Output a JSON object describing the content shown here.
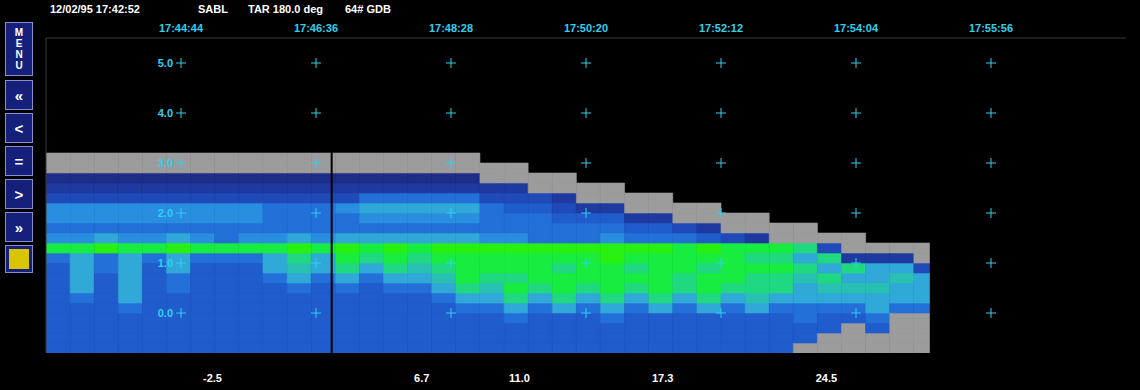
{
  "header": [
    "12/02/95 17:42:52",
    "SABL",
    "TAR 180.0 deg",
    "64# GDB"
  ],
  "menu": {
    "label": "MENU",
    "buttons": [
      "«",
      "<",
      "=",
      ">",
      "»"
    ]
  },
  "chart_data": {
    "type": "heatmap",
    "grid": true,
    "xlim": [
      63772,
      64668
    ],
    "xticks": [
      {
        "value": 63884,
        "label": "17:44:44"
      },
      {
        "value": 63996,
        "label": "17:46:36"
      },
      {
        "value": 64108,
        "label": "17:48:28"
      },
      {
        "value": 64220,
        "label": "17:50:20"
      },
      {
        "value": 64332,
        "label": "17:52:12"
      },
      {
        "value": 64444,
        "label": "17:54:04"
      },
      {
        "value": 64556,
        "label": "17:55:56"
      }
    ],
    "ylim": [
      -0.8,
      5.5
    ],
    "yticks": [
      {
        "value": 0,
        "label": "0.0"
      },
      {
        "value": 1,
        "label": "1.0"
      },
      {
        "value": 2,
        "label": "2.0"
      },
      {
        "value": 3,
        "label": "3.0"
      },
      {
        "value": 4,
        "label": "4.0"
      },
      {
        "value": 5,
        "label": "5.0"
      }
    ],
    "cursor_x": 64009,
    "x": [
      63772,
      63792,
      63812,
      63832,
      63852,
      63872,
      63892,
      63912,
      63932,
      63952,
      63972,
      63992,
      64012,
      64032,
      64052,
      64072,
      64092,
      64112,
      64132,
      64152,
      64172,
      64192,
      64212,
      64232,
      64252,
      64272,
      64292,
      64312,
      64332,
      64352,
      64372,
      64392,
      64412,
      64432,
      64452,
      64472,
      64492,
      64505
    ],
    "y": [
      -0.8,
      -0.6,
      -0.4,
      -0.2,
      0,
      0.2,
      0.4,
      0.6,
      0.8,
      1.0,
      1.2,
      1.4,
      1.6,
      1.8,
      2.0,
      2.2,
      2.4,
      2.6,
      2.8,
      3.0,
      3.2
    ],
    "values": [
      [
        0,
        0,
        0,
        0,
        0,
        0,
        0,
        0,
        0,
        2,
        11,
        4,
        2,
        4,
        4,
        -2,
        -4,
        -5,
        null,
        null
      ],
      [
        0,
        0,
        0,
        0,
        0,
        2,
        6,
        6,
        6,
        6,
        11,
        4,
        2,
        4,
        4,
        -2,
        -4,
        -5,
        null,
        null
      ],
      [
        0,
        0,
        0,
        0,
        0,
        0,
        0,
        0,
        2,
        2,
        13,
        6,
        2,
        4,
        4,
        -2,
        -4,
        -5,
        null,
        null
      ],
      [
        0,
        0,
        0,
        0,
        2,
        6,
        6,
        6,
        6,
        6,
        11,
        4,
        2,
        4,
        4,
        -2,
        -4,
        -5,
        null,
        null
      ],
      [
        0,
        0,
        0,
        0,
        0,
        0,
        0,
        0,
        0,
        2,
        11,
        4,
        2,
        4,
        4,
        -2,
        -4,
        -5,
        null,
        null
      ],
      [
        0,
        0,
        0,
        0,
        0,
        0,
        2,
        2,
        6,
        6,
        13,
        6,
        2,
        4,
        4,
        -2,
        -4,
        -5,
        null,
        null
      ],
      [
        0,
        0,
        0,
        0,
        0,
        0,
        0,
        0,
        0,
        2,
        11,
        4,
        2,
        4,
        4,
        -2,
        -4,
        -5,
        null,
        null
      ],
      [
        0,
        0,
        0,
        0,
        0,
        0,
        0,
        0,
        0,
        2,
        11,
        2,
        2,
        4,
        4,
        -2,
        -4,
        -5,
        null,
        null
      ],
      [
        0,
        0,
        0,
        0,
        0,
        0,
        0,
        0,
        0,
        2,
        11,
        4,
        2,
        4,
        4,
        -2,
        -4,
        -5,
        null,
        null
      ],
      [
        0,
        0,
        0,
        0,
        0,
        0,
        0,
        2,
        6,
        6,
        11,
        4,
        2,
        2,
        2,
        -2,
        -4,
        -5,
        null,
        null
      ],
      [
        0,
        0,
        0,
        0,
        0,
        0,
        2,
        6,
        7.5,
        9,
        13,
        6,
        2,
        2,
        2,
        -2,
        -4,
        -5,
        null,
        null
      ],
      [
        0,
        0,
        0,
        0,
        0,
        0,
        0,
        2,
        6,
        6,
        11,
        4,
        2,
        2,
        2,
        -2,
        -4,
        -5,
        null,
        null
      ],
      [
        0,
        0,
        0,
        0,
        0,
        0,
        2,
        6,
        9,
        11,
        13,
        6,
        2,
        2,
        4,
        -2,
        -4,
        -5,
        null,
        null
      ],
      [
        0,
        0,
        0,
        0,
        0,
        0,
        0,
        2,
        6,
        9,
        11,
        6,
        2,
        4,
        6,
        2,
        -4,
        -5,
        null,
        null
      ],
      [
        0,
        0,
        0,
        0,
        0,
        0,
        2,
        6,
        9,
        11,
        13,
        6,
        2,
        4,
        6,
        2,
        -4,
        -5,
        null,
        null
      ],
      [
        0,
        0,
        0,
        0,
        0,
        0,
        2,
        6,
        7.5,
        9,
        11,
        6,
        2,
        4,
        6,
        2,
        -4,
        -5,
        null,
        null
      ],
      [
        0,
        0,
        0,
        0,
        0,
        2,
        6,
        7.5,
        9,
        11,
        13,
        6,
        2,
        4,
        6,
        2,
        -4,
        -5,
        null,
        null
      ],
      [
        0,
        0,
        0,
        0,
        2,
        6,
        9,
        11,
        11,
        11,
        13,
        6,
        2,
        4,
        6,
        2,
        -4,
        -5,
        null,
        null
      ],
      [
        0,
        0,
        0,
        0,
        2,
        6,
        7.5,
        9,
        11,
        11,
        13,
        4,
        2,
        2,
        2,
        -2,
        -4,
        null,
        null
      ],
      [
        0,
        0,
        0,
        2,
        6,
        9,
        11,
        9,
        11,
        11,
        13,
        4,
        2,
        2,
        0,
        -2,
        -4,
        null,
        null
      ],
      [
        0,
        0,
        0,
        0,
        2,
        6,
        9,
        11,
        11,
        11,
        13,
        2,
        2,
        2,
        0,
        -2,
        null,
        null
      ],
      [
        0,
        0,
        0,
        0,
        6,
        9,
        11,
        11,
        9,
        11,
        13,
        2,
        2,
        0,
        -2,
        -4,
        null,
        null
      ],
      [
        0,
        0,
        0,
        0,
        2,
        6,
        9,
        11,
        11,
        11,
        13,
        2,
        2,
        0,
        -4,
        null,
        null
      ],
      [
        0,
        0,
        0,
        2,
        6,
        9,
        11,
        11,
        11,
        13,
        13,
        4,
        2,
        0,
        -4,
        null,
        null
      ],
      [
        0,
        0,
        0,
        0,
        2,
        6,
        9,
        11,
        9,
        11,
        13,
        2,
        0,
        -4,
        null,
        null
      ],
      [
        0,
        0,
        0,
        0,
        6,
        9,
        11,
        11,
        11,
        11,
        13,
        2,
        0,
        -4,
        null,
        null
      ],
      [
        0,
        0,
        0,
        0,
        2,
        6,
        9,
        9,
        11,
        11,
        11,
        2,
        -2,
        null,
        null
      ],
      [
        0,
        0,
        0,
        0,
        6,
        9,
        11,
        11,
        9,
        11,
        13,
        0,
        -4,
        null,
        null
      ],
      [
        0,
        0,
        0,
        0,
        2,
        6,
        9,
        11,
        11,
        11,
        11,
        -2,
        null,
        null
      ],
      [
        0,
        0,
        0,
        0,
        6,
        7.5,
        9,
        9,
        11,
        9,
        11,
        -4,
        null,
        null
      ],
      [
        0,
        0,
        0,
        0,
        2,
        6,
        9,
        9,
        11,
        9,
        11,
        null,
        null
      ],
      [
        null,
        0,
        0,
        2,
        2,
        6,
        6,
        7.5,
        9,
        6,
        9,
        null,
        null
      ],
      [
        null,
        null,
        0,
        0,
        2,
        6,
        7.5,
        9,
        6,
        9,
        -2,
        null
      ],
      [
        null,
        null,
        null,
        0,
        2,
        6,
        7.5,
        6,
        9,
        -4,
        null,
        null
      ],
      [
        null,
        null,
        0,
        2,
        6,
        6,
        7.5,
        6,
        6,
        -4,
        null
      ],
      [
        null,
        null,
        null,
        null,
        2,
        6,
        6,
        7.5,
        6,
        -4,
        null
      ],
      [
        null,
        null,
        null,
        null,
        2,
        6,
        6,
        6,
        -2,
        null,
        null
      ]
    ],
    "colorbar": {
      "range": [
        -10,
        37.5
      ],
      "ticks": [
        -2.5,
        6.7,
        {
          "value": 11,
          "label": "11.0"
        },
        17.3,
        24.5
      ],
      "colors": [
        "#191c5c",
        "#1c2270",
        "#1d2d88",
        "#1e3aa0",
        "#1f4ab8",
        "#205ccc",
        "#2270d8",
        "#2a8ee0",
        "#30a8d8",
        "#28c0b0",
        "#20d880",
        "#18ec40",
        "#28f010",
        "#48d010",
        "#5cb818",
        "#88b820",
        "#b0c020",
        "#d0c418",
        "#e8b818",
        "#f0a020",
        "#f08820",
        "#f07020",
        "#e85820",
        "#e04020",
        "#d82818",
        "#c01010"
      ]
    }
  }
}
